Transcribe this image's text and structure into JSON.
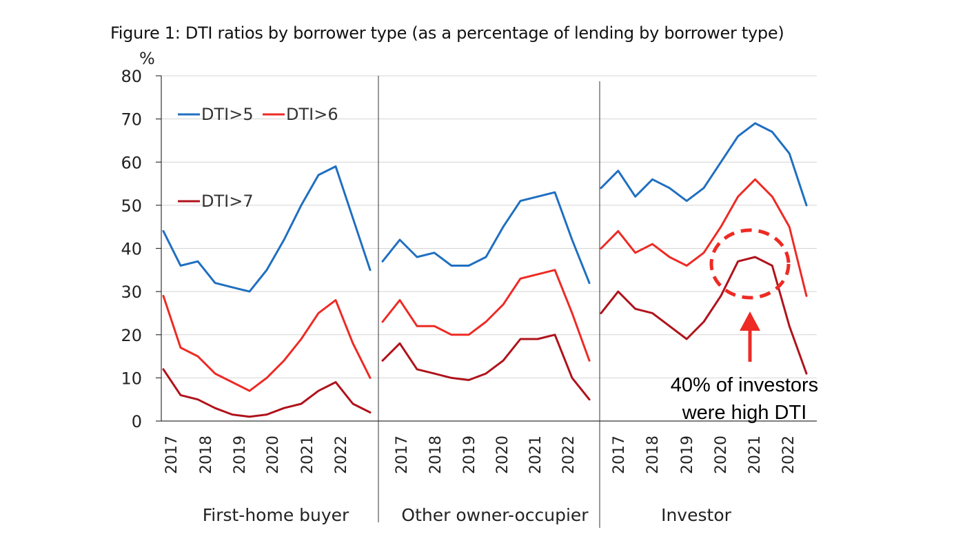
{
  "title": "Figure 1: DTI ratios by borrower type (as a percentage of lending by borrower type)",
  "chart_data": {
    "type": "line",
    "title": "Figure 1: DTI ratios by borrower type (as a percentage of lending by borrower type)",
    "ylabel": "%",
    "ylim": [
      0,
      80
    ],
    "yticks": [
      "0",
      "10",
      "20",
      "30",
      "40",
      "50",
      "60",
      "70",
      "80"
    ],
    "grid": true,
    "legend": [
      {
        "name": "DTI>5",
        "color": "#1f6fc0",
        "placement": "top-left"
      },
      {
        "name": "DTI>6",
        "color": "#ee2a24",
        "placement": "top-left"
      },
      {
        "name": "DTI>7",
        "color": "#b0121b",
        "placement": "upper-left"
      }
    ],
    "x_tick_labels": [
      "2017",
      "2018",
      "2019",
      "2020",
      "2021",
      "2022"
    ],
    "panels": [
      {
        "name": "First-home buyer",
        "x": [
          "2017-01",
          "2017-07",
          "2018-01",
          "2018-07",
          "2019-01",
          "2019-07",
          "2020-01",
          "2020-07",
          "2021-01",
          "2021-07",
          "2022-01",
          "2022-07",
          "2022-12"
        ],
        "series": [
          {
            "name": "DTI>5",
            "color": "#1f6fc0",
            "values": [
              44,
              36,
              37,
              32,
              31,
              30,
              35,
              42,
              50,
              57,
              59,
              47,
              35
            ]
          },
          {
            "name": "DTI>6",
            "color": "#ee2a24",
            "values": [
              29,
              17,
              15,
              11,
              9,
              7,
              10,
              14,
              19,
              25,
              28,
              18,
              10
            ]
          },
          {
            "name": "DTI>7",
            "color": "#b0121b",
            "values": [
              12,
              6,
              5,
              3,
              1.5,
              1,
              1.5,
              3,
              4,
              7,
              9,
              4,
              2
            ]
          }
        ]
      },
      {
        "name": "Other owner-occupier",
        "x": [
          "2017-01",
          "2017-07",
          "2018-01",
          "2018-07",
          "2019-01",
          "2019-07",
          "2020-01",
          "2020-07",
          "2021-01",
          "2021-07",
          "2022-01",
          "2022-07",
          "2022-12"
        ],
        "series": [
          {
            "name": "DTI>5",
            "color": "#1f6fc0",
            "values": [
              37,
              42,
              38,
              39,
              36,
              36,
              38,
              45,
              51,
              52,
              53,
              42,
              32
            ]
          },
          {
            "name": "DTI>6",
            "color": "#ee2a24",
            "values": [
              23,
              28,
              22,
              22,
              20,
              20,
              23,
              27,
              33,
              34,
              35,
              25,
              14
            ]
          },
          {
            "name": "DTI>7",
            "color": "#b0121b",
            "values": [
              14,
              18,
              12,
              11,
              10,
              9.5,
              11,
              14,
              19,
              19,
              20,
              10,
              5
            ]
          }
        ]
      },
      {
        "name": "Investor",
        "x": [
          "2017-01",
          "2017-07",
          "2018-01",
          "2018-07",
          "2019-01",
          "2019-07",
          "2020-01",
          "2020-07",
          "2021-01",
          "2021-07",
          "2022-01",
          "2022-07",
          "2022-12"
        ],
        "series": [
          {
            "name": "DTI>5",
            "color": "#1f6fc0",
            "values": [
              54,
              58,
              52,
              56,
              54,
              51,
              54,
              60,
              66,
              69,
              67,
              62,
              50
            ]
          },
          {
            "name": "DTI>6",
            "color": "#ee2a24",
            "values": [
              40,
              44,
              39,
              41,
              38,
              36,
              39,
              45,
              52,
              56,
              52,
              45,
              29
            ]
          },
          {
            "name": "DTI>7",
            "color": "#b0121b",
            "values": [
              25,
              30,
              26,
              25,
              22,
              19,
              23,
              29,
              37,
              38,
              36,
              22,
              11
            ]
          }
        ]
      }
    ],
    "annotation": {
      "text_line1": "40% of investors",
      "text_line2": "were high DTI",
      "color": "#ee2a24",
      "shapes": [
        "dashed-ellipse",
        "up-arrow"
      ]
    }
  }
}
